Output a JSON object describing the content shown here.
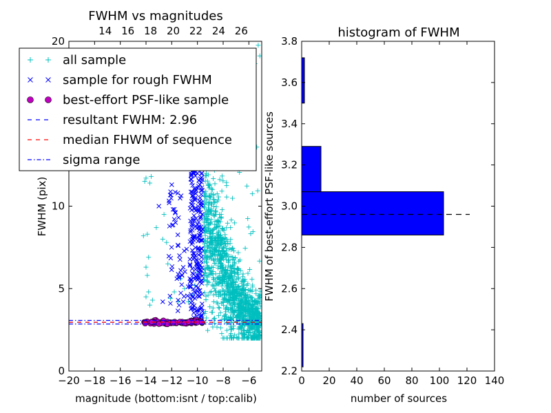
{
  "chart_data": [
    {
      "type": "scatter",
      "title": "FWHM vs magnitudes",
      "xlabel": "magnitude (bottom:isnt / top:calib)",
      "ylabel": "FWHM (pix)",
      "xlim": [
        -20,
        -5
      ],
      "ylim": [
        0,
        20
      ],
      "xticks": [
        -20,
        -18,
        -16,
        -14,
        -12,
        -10,
        -8,
        -6
      ],
      "xtick_labels": [
        "−20",
        "−18",
        "−16",
        "−14",
        "−12",
        "−10",
        "−8",
        "−6"
      ],
      "yticks": [
        0,
        5,
        10,
        20
      ],
      "ytick_labels": [
        "0",
        "5",
        "10",
        "20"
      ],
      "top_axis": {
        "xlim": [
          10.8,
          27.8
        ],
        "ticks": [
          14,
          16,
          18,
          20,
          22,
          24,
          26
        ],
        "tick_labels": [
          "14",
          "16",
          "18",
          "20",
          "22",
          "24",
          "26"
        ]
      },
      "legend": {
        "placement": "upper-left",
        "entries": [
          {
            "label": "all sample",
            "marker": "+",
            "color": "#00BFBF"
          },
          {
            "label": "sample for rough FWHM",
            "marker": "x",
            "color": "#0000FF"
          },
          {
            "label": "best-effort PSF-like sample",
            "marker": "o",
            "color": "#BF00BF"
          },
          {
            "label": "resultant FWHM: 2.96",
            "line": "dashed",
            "color": "#0000FF"
          },
          {
            "label": "median FHWM of sequence",
            "line": "dashed",
            "color": "#FF0000"
          },
          {
            "label": "sigma range",
            "line": "dashdot",
            "color": "#0000FF"
          }
        ]
      },
      "series": [
        {
          "name": "all sample",
          "color": "#00BFBF",
          "points": [
            [
              -14.1,
              11.5
            ],
            [
              -14.0,
              11.7
            ],
            [
              -13.9,
              8.3
            ],
            [
              -14.2,
              8.2
            ],
            [
              -13.8,
              6.9
            ],
            [
              -14.0,
              6.3
            ],
            [
              -13.9,
              5.8
            ],
            [
              -13.8,
              4.8
            ],
            [
              -14.0,
              4.5
            ],
            [
              -13.7,
              4.0
            ],
            [
              -13.5,
              4.3
            ],
            [
              -13.2,
              8.7
            ],
            [
              -12.7,
              8.0
            ],
            [
              -12.6,
              9.5
            ],
            [
              -12.4,
              7.8
            ],
            [
              -12.3,
              6.5
            ],
            [
              -12.1,
              4.4
            ],
            [
              -11.8,
              4.8
            ],
            [
              -11.5,
              4.2
            ],
            [
              -11.3,
              5.6
            ],
            [
              -11.0,
              5.0
            ],
            [
              -10.7,
              4.2
            ],
            [
              -10.4,
              4.6
            ],
            [
              -10.2,
              5.2
            ],
            [
              -10.0,
              6.0
            ],
            [
              -9.8,
              6.3
            ],
            [
              -13.7,
              11.4
            ],
            [
              -13.6,
              11.8
            ]
          ],
          "dense_band": {
            "x_range": [
              -9.5,
              -5.1
            ],
            "y_center_at": [
              [
                -9.5,
                8.5
              ],
              [
                -8.5,
                7.0
              ],
              [
                -7.5,
                5.0
              ],
              [
                -6.5,
                3.8
              ],
              [
                -5.5,
                2.9
              ]
            ],
            "y_max": 19.8,
            "y_min": 2.0
          }
        },
        {
          "name": "sample for rough FWHM",
          "color": "#0000FF",
          "x_range": [
            -13.0,
            -9.6
          ],
          "note_points": [
            [
              -12.2,
              10.2
            ],
            [
              -12.0,
              11.3
            ],
            [
              -11.9,
              9.8
            ],
            [
              -11.8,
              9.2
            ],
            [
              -11.7,
              9.0
            ],
            [
              -11.5,
              7.6
            ],
            [
              -11.4,
              7.0
            ],
            [
              -11.3,
              6.1
            ],
            [
              -11.2,
              5.8
            ],
            [
              -11.1,
              4.2
            ],
            [
              -12.7,
              4.2
            ],
            [
              -13.0,
              10.0
            ],
            [
              -12.1,
              4.1
            ],
            [
              -11.6,
              5.6
            ],
            [
              -11.5,
              4.3
            ]
          ],
          "dense_column": {
            "x_range": [
              -10.6,
              -9.6
            ],
            "y_min": 2.9,
            "y_max": 13.2
          }
        },
        {
          "name": "best-effort PSF-like sample",
          "color": "#BF00BF",
          "x_range": [
            -14.2,
            -9.6
          ],
          "y_center": 2.96
        }
      ],
      "hlines": [
        {
          "name": "resultant FWHM",
          "y": 2.96,
          "style": "dashed",
          "color": "#0000FF"
        },
        {
          "name": "median FHWM of sequence",
          "y": 2.96,
          "style": "dashed",
          "color": "#FF0000"
        },
        {
          "name": "sigma range upper",
          "y": 3.07,
          "style": "dashdot",
          "color": "#0000FF"
        },
        {
          "name": "sigma range lower",
          "y": 2.85,
          "style": "dashdot",
          "color": "#0000FF"
        }
      ]
    },
    {
      "type": "bar",
      "orientation": "horizontal",
      "title": "histogram of FWHM",
      "xlabel": "number of sources",
      "ylabel": "FWHM of best-effort PSF-like sources",
      "xlim": [
        0,
        140
      ],
      "ylim": [
        2.2,
        3.8
      ],
      "xticks": [
        0,
        20,
        40,
        60,
        80,
        100,
        120,
        140
      ],
      "xtick_labels": [
        "0",
        "20",
        "40",
        "60",
        "80",
        "100",
        "120",
        "140"
      ],
      "yticks": [
        2.2,
        2.4,
        2.6,
        2.8,
        3.0,
        3.2,
        3.4,
        3.6,
        3.8
      ],
      "ytick_labels": [
        "2.2",
        "2.4",
        "2.6",
        "2.8",
        "3.0",
        "3.2",
        "3.4",
        "3.6",
        "3.8"
      ],
      "color": "#0000FF",
      "bins": [
        {
          "y0": 2.22,
          "y1": 2.43,
          "count": 1
        },
        {
          "y0": 2.86,
          "y1": 3.07,
          "count": 103
        },
        {
          "y0": 3.07,
          "y1": 3.29,
          "count": 14
        },
        {
          "y0": 3.5,
          "y1": 3.72,
          "count": 2
        }
      ],
      "hline": {
        "y": 2.96,
        "x_range": [
          0,
          122
        ],
        "style": "dashed",
        "color": "#000000"
      }
    }
  ]
}
